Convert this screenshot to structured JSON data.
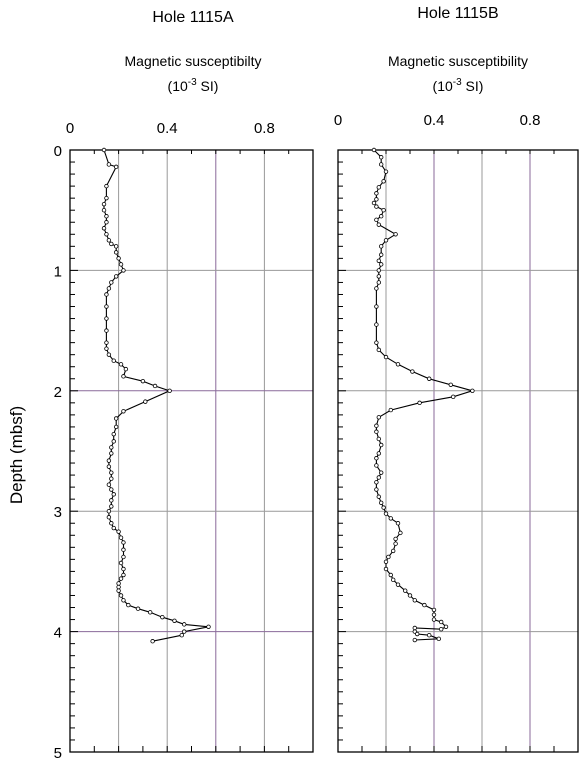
{
  "y_axis_label": "Depth  (mbsf)",
  "chart_data": [
    {
      "type": "line",
      "title": "Hole 1115A",
      "xlabel": "Magnetic susceptibilty",
      "xunit_prefix": "(10",
      "xunit_exp": "-3",
      "xunit_suffix": " SI)",
      "xlim": [
        0,
        1.0
      ],
      "ylim": [
        5,
        0
      ],
      "xticks": [
        "0",
        "0.4",
        "0.8"
      ],
      "xtick_values": [
        0,
        0.4,
        0.8
      ],
      "yticks": [
        "0",
        "1",
        "2",
        "3",
        "4",
        "5"
      ],
      "ytick_values": [
        0,
        1,
        2,
        3,
        4,
        5
      ],
      "grid": true,
      "colors": {
        "line": "#000000",
        "grid": "#999999",
        "grid_accent": "#8a6a9a"
      },
      "series": [
        {
          "x": [
            0.14,
            0.16,
            0.19,
            0.15,
            0.15,
            0.14,
            0.14,
            0.15,
            0.15,
            0.14,
            0.15,
            0.16,
            0.17,
            0.19,
            0.19,
            0.2,
            0.21,
            0.22,
            0.19,
            0.17,
            0.16,
            0.15,
            0.15,
            0.15,
            0.15,
            0.15,
            0.15,
            0.16,
            0.18,
            0.21,
            0.23,
            0.22,
            0.3,
            0.35,
            0.41,
            0.31,
            0.22,
            0.19,
            0.19,
            0.18,
            0.18,
            0.17,
            0.17,
            0.16,
            0.16,
            0.17,
            0.17,
            0.16,
            0.17,
            0.18,
            0.17,
            0.17,
            0.16,
            0.16,
            0.17,
            0.18,
            0.2,
            0.21,
            0.22,
            0.22,
            0.22,
            0.21,
            0.22,
            0.22,
            0.21,
            0.2,
            0.2,
            0.2,
            0.21,
            0.22,
            0.24,
            0.28,
            0.33,
            0.38,
            0.43,
            0.47,
            0.57,
            0.47,
            0.46,
            0.34
          ],
          "y": [
            0.0,
            0.12,
            0.14,
            0.3,
            0.4,
            0.45,
            0.5,
            0.55,
            0.6,
            0.65,
            0.7,
            0.75,
            0.78,
            0.8,
            0.85,
            0.9,
            0.95,
            1.0,
            1.05,
            1.1,
            1.15,
            1.2,
            1.3,
            1.4,
            1.5,
            1.6,
            1.65,
            1.7,
            1.75,
            1.78,
            1.82,
            1.88,
            1.92,
            1.96,
            2.0,
            2.09,
            2.17,
            2.23,
            2.3,
            2.36,
            2.42,
            2.47,
            2.52,
            2.58,
            2.63,
            2.68,
            2.73,
            2.78,
            2.82,
            2.86,
            2.91,
            2.96,
            3.0,
            3.05,
            3.1,
            3.14,
            3.17,
            3.22,
            3.26,
            3.32,
            3.38,
            3.43,
            3.48,
            3.53,
            3.56,
            3.6,
            3.63,
            3.66,
            3.7,
            3.74,
            3.78,
            3.81,
            3.84,
            3.88,
            3.91,
            3.94,
            3.96,
            4.0,
            4.03,
            4.08
          ]
        }
      ]
    },
    {
      "type": "line",
      "title": "Hole 1115B",
      "xlabel": "Magnetic susceptibility",
      "xunit_prefix": "(10",
      "xunit_exp": "-3",
      "xunit_suffix": " SI)",
      "xlim": [
        0,
        1.0
      ],
      "ylim": [
        5,
        0
      ],
      "xticks": [
        "0",
        "0.4",
        "0.8"
      ],
      "xtick_values": [
        0,
        0.4,
        0.8
      ],
      "grid": true,
      "colors": {
        "line": "#000000",
        "grid": "#999999",
        "grid_accent": "#8a6a9a"
      },
      "series": [
        {
          "x": [
            0.15,
            0.18,
            0.18,
            0.2,
            0.19,
            0.17,
            0.16,
            0.16,
            0.15,
            0.16,
            0.19,
            0.18,
            0.16,
            0.17,
            0.24,
            0.2,
            0.18,
            0.18,
            0.17,
            0.18,
            0.17,
            0.17,
            0.17,
            0.16,
            0.16,
            0.16,
            0.16,
            0.17,
            0.2,
            0.25,
            0.31,
            0.38,
            0.47,
            0.56,
            0.48,
            0.34,
            0.22,
            0.17,
            0.16,
            0.16,
            0.17,
            0.18,
            0.17,
            0.16,
            0.16,
            0.18,
            0.17,
            0.16,
            0.16,
            0.17,
            0.18,
            0.19,
            0.2,
            0.22,
            0.25,
            0.26,
            0.24,
            0.24,
            0.23,
            0.21,
            0.2,
            0.2,
            0.22,
            0.23,
            0.25,
            0.28,
            0.3,
            0.32,
            0.36,
            0.4,
            0.4,
            0.4,
            0.43,
            0.45,
            0.43,
            0.32,
            0.32,
            0.33,
            0.38,
            0.42,
            0.32
          ],
          "y": [
            0.0,
            0.06,
            0.12,
            0.18,
            0.26,
            0.31,
            0.36,
            0.41,
            0.44,
            0.47,
            0.5,
            0.55,
            0.58,
            0.62,
            0.7,
            0.75,
            0.8,
            0.87,
            0.92,
            0.95,
            1.0,
            1.05,
            1.1,
            1.15,
            1.3,
            1.45,
            1.6,
            1.66,
            1.72,
            1.78,
            1.84,
            1.9,
            1.95,
            2.0,
            2.05,
            2.1,
            2.16,
            2.22,
            2.29,
            2.34,
            2.4,
            2.45,
            2.52,
            2.56,
            2.62,
            2.68,
            2.72,
            2.76,
            2.82,
            2.88,
            2.93,
            2.97,
            3.02,
            3.06,
            3.1,
            3.18,
            3.23,
            3.27,
            3.33,
            3.38,
            3.42,
            3.48,
            3.53,
            3.57,
            3.61,
            3.66,
            3.7,
            3.74,
            3.78,
            3.82,
            3.86,
            3.9,
            3.92,
            3.96,
            3.98,
            3.97,
            4.0,
            4.02,
            4.03,
            4.06,
            4.07
          ]
        }
      ]
    }
  ]
}
